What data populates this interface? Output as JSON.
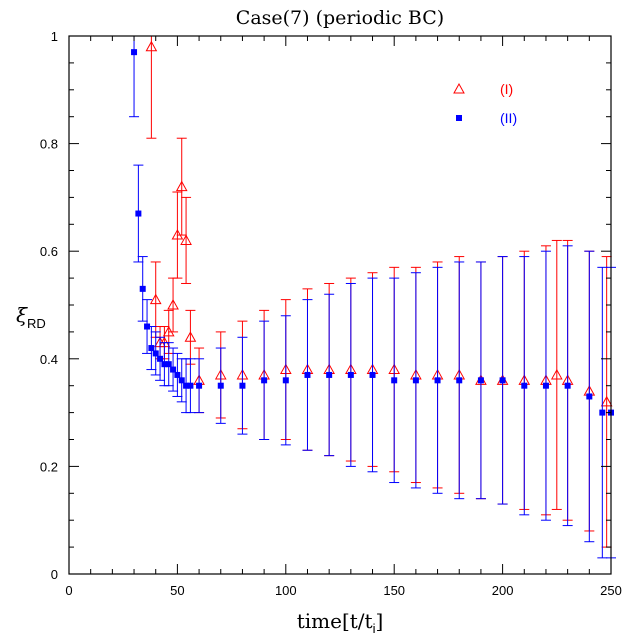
{
  "chart_data": {
    "type": "scatter",
    "title": "Case(7) (periodic BC)",
    "xlabel": "time[t/t",
    "xlabel_sub": "i",
    "xlabel_end": "]",
    "ylabel": "ξ",
    "ylabel_sub": "RD",
    "xlim": [
      0,
      250
    ],
    "ylim": [
      0,
      1
    ],
    "xticks": [
      0,
      50,
      100,
      150,
      200,
      250
    ],
    "yticks": [
      0,
      0.2,
      0.4,
      0.6,
      0.8,
      1
    ],
    "ytick_labels": [
      "0",
      "0.2",
      "0.4",
      "0.6",
      "0.8",
      "1"
    ],
    "legend_position": "top-right",
    "grid": false,
    "series": [
      {
        "name": "(I)",
        "color": "#ff0000",
        "marker": "open-triangle",
        "points": [
          {
            "x": 38,
            "y": 0.98,
            "err": 0.17
          },
          {
            "x": 40,
            "y": 0.51,
            "err": 0.07
          },
          {
            "x": 42,
            "y": 0.43,
            "err": 0.03
          },
          {
            "x": 44,
            "y": 0.43,
            "err": 0.03
          },
          {
            "x": 46,
            "y": 0.45,
            "err": 0.04
          },
          {
            "x": 48,
            "y": 0.5,
            "err": 0.05
          },
          {
            "x": 50,
            "y": 0.63,
            "err": 0.08
          },
          {
            "x": 52,
            "y": 0.72,
            "err": 0.09
          },
          {
            "x": 54,
            "y": 0.62,
            "err": 0.08
          },
          {
            "x": 56,
            "y": 0.44,
            "err": 0.05
          },
          {
            "x": 60,
            "y": 0.36,
            "err": 0.06
          },
          {
            "x": 70,
            "y": 0.37,
            "err": 0.08
          },
          {
            "x": 80,
            "y": 0.37,
            "err": 0.1
          },
          {
            "x": 90,
            "y": 0.37,
            "err": 0.12
          },
          {
            "x": 100,
            "y": 0.38,
            "err": 0.13
          },
          {
            "x": 110,
            "y": 0.38,
            "err": 0.15
          },
          {
            "x": 120,
            "y": 0.38,
            "err": 0.16
          },
          {
            "x": 130,
            "y": 0.38,
            "err": 0.17
          },
          {
            "x": 140,
            "y": 0.38,
            "err": 0.18
          },
          {
            "x": 150,
            "y": 0.38,
            "err": 0.19
          },
          {
            "x": 160,
            "y": 0.37,
            "err": 0.2
          },
          {
            "x": 170,
            "y": 0.37,
            "err": 0.21
          },
          {
            "x": 180,
            "y": 0.37,
            "err": 0.22
          },
          {
            "x": 190,
            "y": 0.36,
            "err": 0.22
          },
          {
            "x": 200,
            "y": 0.36,
            "err": 0.23
          },
          {
            "x": 210,
            "y": 0.36,
            "err": 0.24
          },
          {
            "x": 220,
            "y": 0.36,
            "err": 0.25
          },
          {
            "x": 225,
            "y": 0.37,
            "err": 0.25
          },
          {
            "x": 230,
            "y": 0.36,
            "err": 0.26
          },
          {
            "x": 240,
            "y": 0.34,
            "err": 0.26
          },
          {
            "x": 248,
            "y": 0.32,
            "err": 0.27
          }
        ]
      },
      {
        "name": "(II)",
        "color": "#0000ff",
        "marker": "filled-square",
        "points": [
          {
            "x": 30,
            "y": 0.97,
            "err": 0.12
          },
          {
            "x": 32,
            "y": 0.67,
            "err": 0.09
          },
          {
            "x": 34,
            "y": 0.53,
            "err": 0.06
          },
          {
            "x": 36,
            "y": 0.46,
            "err": 0.05
          },
          {
            "x": 38,
            "y": 0.42,
            "err": 0.04
          },
          {
            "x": 40,
            "y": 0.41,
            "err": 0.04
          },
          {
            "x": 42,
            "y": 0.4,
            "err": 0.04
          },
          {
            "x": 44,
            "y": 0.39,
            "err": 0.04
          },
          {
            "x": 46,
            "y": 0.39,
            "err": 0.04
          },
          {
            "x": 48,
            "y": 0.38,
            "err": 0.04
          },
          {
            "x": 50,
            "y": 0.37,
            "err": 0.04
          },
          {
            "x": 52,
            "y": 0.36,
            "err": 0.04
          },
          {
            "x": 54,
            "y": 0.35,
            "err": 0.05
          },
          {
            "x": 56,
            "y": 0.35,
            "err": 0.05
          },
          {
            "x": 60,
            "y": 0.35,
            "err": 0.05
          },
          {
            "x": 70,
            "y": 0.35,
            "err": 0.07
          },
          {
            "x": 80,
            "y": 0.35,
            "err": 0.09
          },
          {
            "x": 90,
            "y": 0.36,
            "err": 0.11
          },
          {
            "x": 100,
            "y": 0.36,
            "err": 0.12
          },
          {
            "x": 110,
            "y": 0.37,
            "err": 0.14
          },
          {
            "x": 120,
            "y": 0.37,
            "err": 0.15
          },
          {
            "x": 130,
            "y": 0.37,
            "err": 0.17
          },
          {
            "x": 140,
            "y": 0.37,
            "err": 0.18
          },
          {
            "x": 150,
            "y": 0.36,
            "err": 0.19
          },
          {
            "x": 160,
            "y": 0.36,
            "err": 0.2
          },
          {
            "x": 170,
            "y": 0.36,
            "err": 0.21
          },
          {
            "x": 180,
            "y": 0.36,
            "err": 0.22
          },
          {
            "x": 190,
            "y": 0.36,
            "err": 0.22
          },
          {
            "x": 200,
            "y": 0.36,
            "err": 0.23
          },
          {
            "x": 210,
            "y": 0.35,
            "err": 0.24
          },
          {
            "x": 220,
            "y": 0.35,
            "err": 0.25
          },
          {
            "x": 230,
            "y": 0.35,
            "err": 0.26
          },
          {
            "x": 240,
            "y": 0.33,
            "err": 0.27
          },
          {
            "x": 246,
            "y": 0.3,
            "err": 0.27
          },
          {
            "x": 250,
            "y": 0.3,
            "err": 0.27
          }
        ]
      }
    ]
  }
}
